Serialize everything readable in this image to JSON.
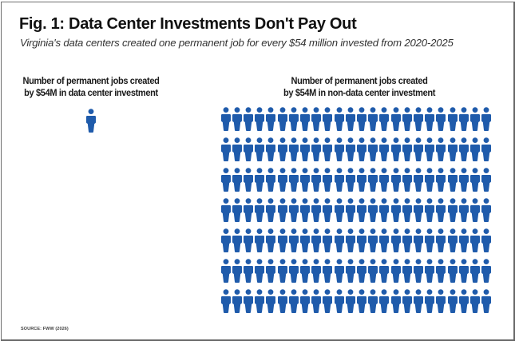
{
  "header": {
    "title_prefix": "Fig. 1:",
    "title_rest": " Data Center Investments Don't Pay Out",
    "subtitle": "Virginia's data centers created one permanent job for every $54 million invested from 2020-2025"
  },
  "footer": {
    "source": "SOURCE: FWW (2026)"
  },
  "colors": {
    "icon": "#1f5bab",
    "frame": "#6e6e6e"
  },
  "chart_data": {
    "type": "pictogram",
    "title": "Fig. 1: Data Center Investments Don't Pay Out",
    "subtitle": "Virginia's data centers created one permanent job for every $54 million invested from 2020-2025",
    "icon": "person-icon",
    "unit": "permanent jobs",
    "series": [
      {
        "name": "data-center",
        "label_line1": "Number of permanent jobs created",
        "label_line2": "by $54M in data center investment",
        "value": 1,
        "columns": 1
      },
      {
        "name": "non-data-center",
        "label_line1": "Number of permanent jobs created",
        "label_line2": "by $54M in non-data center investment",
        "value": 168,
        "columns": 24
      }
    ]
  }
}
